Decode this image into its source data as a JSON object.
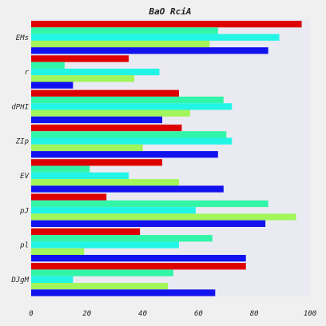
{
  "chart_data": {
    "type": "bar",
    "orientation": "horizontal",
    "title": "BaO RciA",
    "xlabel": "",
    "ylabel": "",
    "xlim": [
      0,
      100
    ],
    "x_ticks": [
      0,
      20,
      40,
      60,
      80,
      100
    ],
    "grid": false,
    "legend": "none",
    "categories": [
      "EMs",
      "r",
      "dPHI",
      "ZIp",
      "EV",
      "pJ",
      "pl",
      "DJgM"
    ],
    "series": [
      {
        "color": "#dd0000",
        "values": [
          97,
          35,
          53,
          54,
          47,
          27,
          39,
          77
        ]
      },
      {
        "color": "#33f5a8",
        "values": [
          67,
          12,
          69,
          70,
          21,
          85,
          65,
          51
        ]
      },
      {
        "color": "#22f5e5",
        "values": [
          89,
          46,
          72,
          72,
          35,
          59,
          53,
          15
        ]
      },
      {
        "color": "#a2f55a",
        "values": [
          64,
          37,
          57,
          40,
          53,
          95,
          19,
          49
        ]
      },
      {
        "color": "#1212ee",
        "values": [
          85,
          15,
          47,
          67,
          69,
          84,
          77,
          66
        ]
      }
    ]
  },
  "colors": {
    "plot_background": "#eaeaf2",
    "page_background": "#f0f0f0"
  }
}
